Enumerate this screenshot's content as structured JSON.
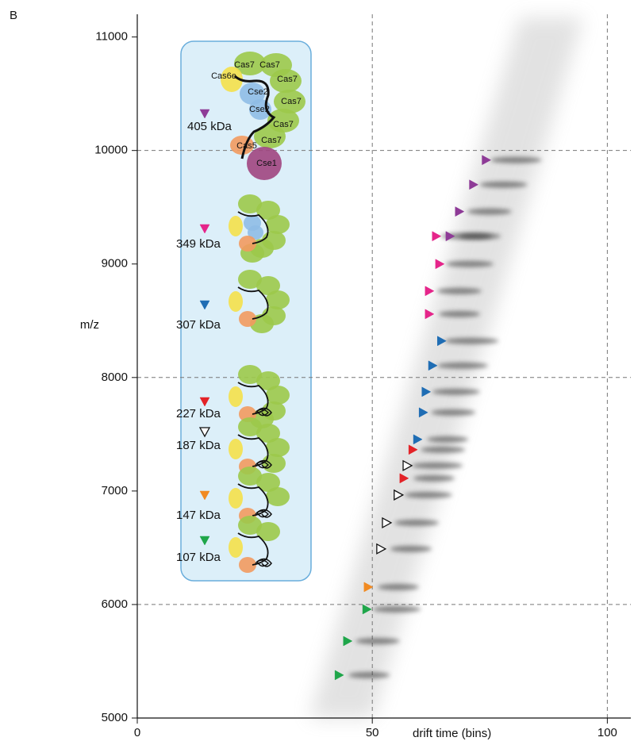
{
  "chart_data": {
    "type": "scatter",
    "panel_label": "B",
    "x_label": "drift time (bins)",
    "y_label": "m/z",
    "xlim": [
      0,
      105
    ],
    "ylim": [
      5000,
      11200
    ],
    "xticks": [
      0,
      50,
      100
    ],
    "yticks": [
      5000,
      6000,
      7000,
      8000,
      9000,
      10000,
      11000
    ],
    "xgrid": [
      50,
      100
    ],
    "ygrid": [
      6000,
      8000,
      10000
    ],
    "inset_labels": [
      "Cas7",
      "Cas7",
      "Cas6e",
      "Cas7",
      "Cse2",
      "Cas7",
      "Cse2",
      "Cas7",
      "Cas5",
      "Cas7",
      "Cse1"
    ],
    "series": [
      {
        "name": "405 kDa",
        "color": "#8e3b97",
        "marker_fill": "#8e3b97",
        "x": [
          66.5,
          68.5,
          71.5,
          74.2
        ],
        "y": [
          9245,
          9462,
          9699,
          9916
        ]
      },
      {
        "name": "349 kDa",
        "color": "#e5258a",
        "marker_fill": "#e5258a",
        "x": [
          62.1,
          62.1,
          64.3,
          63.6
        ],
        "y": [
          8559,
          8762,
          9000,
          9245
        ]
      },
      {
        "name": "307 kDa",
        "color": "#1f6db4",
        "marker_fill": "#1f6db4",
        "x": [
          59.6,
          60.8,
          61.4,
          62.8,
          64.7
        ],
        "y": [
          7455,
          7692,
          7874,
          8105,
          8322
        ]
      },
      {
        "name": "227 kDa",
        "color": "#e32227",
        "marker_fill": "#e32227",
        "x": [
          56.7,
          58.6
        ],
        "y": [
          7112,
          7364
        ]
      },
      {
        "name": "187 kDa",
        "color": "#111111",
        "marker_fill": "#ffffff",
        "x": [
          51.8,
          53.0,
          55.5,
          57.4
        ],
        "y": [
          6490,
          6720,
          6965,
          7224
        ]
      },
      {
        "name": "147 kDa",
        "color": "#f18a21",
        "marker_fill": "#f18a21",
        "x": [
          49.1
        ],
        "y": [
          6154
        ]
      },
      {
        "name": "107 kDa",
        "color": "#1fa64a",
        "marker_fill": "#1fa64a",
        "x": [
          42.9,
          44.7,
          48.8
        ],
        "y": [
          5378,
          5678,
          5958
        ]
      }
    ]
  }
}
